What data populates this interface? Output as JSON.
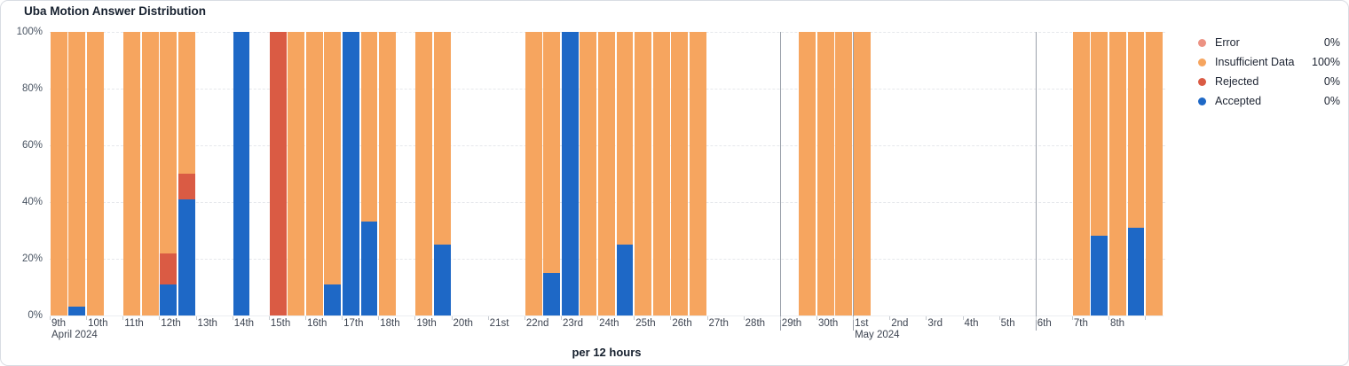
{
  "card": {
    "title": "Uba Motion Answer Distribution"
  },
  "chart_data": {
    "type": "bar",
    "stacked": true,
    "unit": "percent",
    "title": "Uba Motion Answer Distribution",
    "x_axis_title": "per 12 hours",
    "bucket_hours": 12,
    "ylim": [
      0,
      100
    ],
    "grid": "horizontal-dashed",
    "legend_position": "right",
    "y_tick_labels": [
      "0%",
      "20%",
      "40%",
      "60%",
      "80%",
      "100%"
    ],
    "series": [
      {
        "key": "error",
        "name": "Error",
        "color": "#ec9283",
        "legend_value": "0%"
      },
      {
        "key": "insufficient",
        "name": "Insufficient Data",
        "color": "#f6a55f",
        "legend_value": "100%"
      },
      {
        "key": "rejected",
        "name": "Rejected",
        "color": "#da5b44",
        "legend_value": "0%"
      },
      {
        "key": "accepted",
        "name": "Accepted",
        "color": "#1e68c6",
        "legend_value": "0%"
      }
    ],
    "days": [
      {
        "label": "9th",
        "sub": "April 2024"
      },
      {
        "label": "10th"
      },
      {
        "label": "11th"
      },
      {
        "label": "12th"
      },
      {
        "label": "13th"
      },
      {
        "label": "14th"
      },
      {
        "label": "15th"
      },
      {
        "label": "16th"
      },
      {
        "label": "17th"
      },
      {
        "label": "18th"
      },
      {
        "label": "19th"
      },
      {
        "label": "20th"
      },
      {
        "label": "21st"
      },
      {
        "label": "22nd"
      },
      {
        "label": "23rd"
      },
      {
        "label": "24th"
      },
      {
        "label": "25th"
      },
      {
        "label": "26th"
      },
      {
        "label": "27th"
      },
      {
        "label": "28th"
      },
      {
        "label": "29th"
      },
      {
        "label": "30th"
      },
      {
        "label": "1st",
        "sub": "May 2024"
      },
      {
        "label": "2nd"
      },
      {
        "label": "3rd"
      },
      {
        "label": "4th"
      },
      {
        "label": "5th"
      },
      {
        "label": "6th"
      },
      {
        "label": "7th"
      },
      {
        "label": "8th"
      },
      {
        "label": ""
      }
    ],
    "separator_day_indices": [
      20,
      22,
      27
    ],
    "bars": [
      {
        "slot": 0,
        "insufficient": 100
      },
      {
        "slot": 1,
        "accepted": 3,
        "insufficient": 97
      },
      {
        "slot": 2,
        "insufficient": 100
      },
      {
        "slot": 4,
        "insufficient": 100
      },
      {
        "slot": 5,
        "insufficient": 100
      },
      {
        "slot": 6,
        "accepted": 11,
        "rejected": 11,
        "insufficient": 78
      },
      {
        "slot": 7,
        "accepted": 41,
        "rejected": 9,
        "insufficient": 50
      },
      {
        "slot": 10,
        "accepted": 100
      },
      {
        "slot": 12,
        "rejected": 100
      },
      {
        "slot": 13,
        "insufficient": 100
      },
      {
        "slot": 14,
        "insufficient": 100
      },
      {
        "slot": 15,
        "accepted": 11,
        "insufficient": 89
      },
      {
        "slot": 16,
        "accepted": 100
      },
      {
        "slot": 17,
        "accepted": 33,
        "insufficient": 67
      },
      {
        "slot": 18,
        "insufficient": 100
      },
      {
        "slot": 20,
        "insufficient": 100
      },
      {
        "slot": 21,
        "accepted": 25,
        "insufficient": 75
      },
      {
        "slot": 26,
        "insufficient": 100
      },
      {
        "slot": 27,
        "accepted": 15,
        "insufficient": 85
      },
      {
        "slot": 28,
        "accepted": 100
      },
      {
        "slot": 29,
        "insufficient": 100
      },
      {
        "slot": 30,
        "insufficient": 100
      },
      {
        "slot": 31,
        "accepted": 25,
        "insufficient": 75
      },
      {
        "slot": 32,
        "insufficient": 100
      },
      {
        "slot": 33,
        "insufficient": 100
      },
      {
        "slot": 34,
        "insufficient": 100
      },
      {
        "slot": 35,
        "insufficient": 100
      },
      {
        "slot": 41,
        "insufficient": 100
      },
      {
        "slot": 42,
        "insufficient": 100
      },
      {
        "slot": 43,
        "insufficient": 100
      },
      {
        "slot": 44,
        "insufficient": 100
      },
      {
        "slot": 56,
        "insufficient": 100
      },
      {
        "slot": 57,
        "accepted": 28,
        "insufficient": 72
      },
      {
        "slot": 58,
        "insufficient": 100
      },
      {
        "slot": 59,
        "accepted": 31,
        "insufficient": 69
      },
      {
        "slot": 60,
        "insufficient": 100
      }
    ]
  }
}
